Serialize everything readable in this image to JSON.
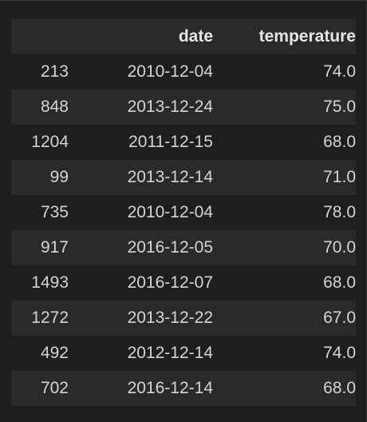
{
  "dataframe": {
    "columns": [
      "",
      "date",
      "temperature"
    ],
    "rows": [
      {
        "index": "213",
        "date": "2010-12-04",
        "temperature": "74.0"
      },
      {
        "index": "848",
        "date": "2013-12-24",
        "temperature": "75.0"
      },
      {
        "index": "1204",
        "date": "2011-12-15",
        "temperature": "68.0"
      },
      {
        "index": "99",
        "date": "2013-12-14",
        "temperature": "71.0"
      },
      {
        "index": "735",
        "date": "2010-12-04",
        "temperature": "78.0"
      },
      {
        "index": "917",
        "date": "2016-12-05",
        "temperature": "70.0"
      },
      {
        "index": "1493",
        "date": "2016-12-07",
        "temperature": "68.0"
      },
      {
        "index": "1272",
        "date": "2013-12-22",
        "temperature": "67.0"
      },
      {
        "index": "492",
        "date": "2012-12-14",
        "temperature": "74.0"
      },
      {
        "index": "702",
        "date": "2016-12-14",
        "temperature": "68.0"
      }
    ]
  }
}
